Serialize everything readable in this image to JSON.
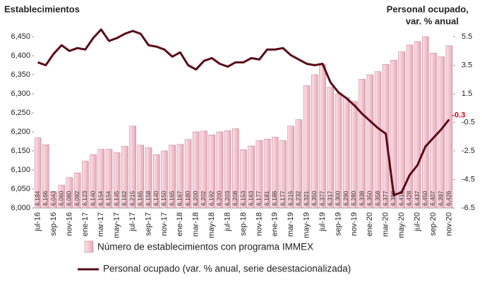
{
  "chart_data": {
    "type": "bar",
    "title": "Establecimientos",
    "y2_title": [
      "Personal ocupado,",
      "var.  % anual"
    ],
    "categories": [
      "jul-16",
      null,
      "sep-16",
      null,
      "nov-16",
      null,
      "ene-17",
      null,
      "mar-17",
      null,
      "may-17",
      null,
      "jul-17",
      null,
      "sep-17",
      null,
      "nov-17",
      null,
      "ene-18",
      null,
      "mar-18",
      null,
      "may-18",
      null,
      "jul-18",
      null,
      "sep-18",
      null,
      "nov-18",
      null,
      "ene-19",
      null,
      "mar-19",
      null,
      "may-19",
      null,
      "jul-19",
      null,
      "sep-19",
      null,
      "nov-19",
      null,
      "ene-20",
      null,
      "mar-20",
      null,
      "may-20",
      null,
      "jul-20",
      null,
      "sep-20",
      null,
      "nov-20"
    ],
    "series": [
      {
        "name": "Número de establecimientos con programa IMMEX",
        "type": "bar",
        "color": "#f3c6d1",
        "edge": "#c08494",
        "values": [
          6184,
          6166,
          6043,
          6060,
          6080,
          6092,
          6123,
          6140,
          6154,
          6154,
          6145,
          6162,
          6215,
          6165,
          6158,
          6140,
          6150,
          6165,
          6167,
          6180,
          6200,
          6202,
          6192,
          6200,
          6203,
          6208,
          6153,
          6163,
          6177,
          6181,
          6186,
          6177,
          6215,
          6232,
          6321,
          6350,
          6377,
          6317,
          6300,
          6290,
          6280,
          6338,
          6350,
          6358,
          6377,
          6388,
          6410,
          6428,
          6437,
          6450,
          6407,
          6397,
          6426
        ],
        "value_labels": [
          "6,184",
          "6,166",
          "6,043",
          "6,060",
          "6,080",
          "6,092",
          "6,123",
          "6,140",
          "6,154",
          "6,154",
          "6,145",
          "6,162",
          "6,215",
          "6,165",
          "6,158",
          "6,140",
          "6,150",
          "6,165",
          "6,167",
          "6,180",
          "6,200",
          "6,202",
          "6,192",
          "6,200",
          "6,203",
          "6,208",
          "6,153",
          "6,163",
          "6,177",
          "6,181",
          "6,186",
          "6,177",
          "6,215",
          "6,232",
          "6,321",
          "6,350",
          "6,377",
          "6,317",
          "6,300",
          "6,290",
          "6,280",
          "6,338",
          "6,350",
          "6,358",
          "6,377",
          "6,388",
          "6,410",
          "6,428",
          "6,437",
          "6,450",
          "6,407",
          "6,397",
          "6,426"
        ]
      },
      {
        "name": "Personal ocupado (var. % anual, serie desestacionalizada)",
        "type": "line",
        "axis": "y2",
        "color": "#5a0a16",
        "values": [
          3.7,
          3.5,
          4.3,
          4.9,
          4.5,
          4.7,
          4.6,
          5.4,
          6.0,
          5.2,
          5.4,
          5.7,
          5.9,
          5.7,
          4.9,
          4.8,
          4.6,
          4.1,
          4.4,
          3.5,
          3.2,
          3.8,
          4.0,
          3.6,
          3.4,
          3.7,
          3.7,
          4.0,
          3.9,
          4.6,
          4.6,
          4.7,
          4.2,
          3.9,
          3.6,
          3.5,
          3.6,
          2.3,
          1.6,
          1.2,
          0.7,
          0.1,
          -0.4,
          -0.9,
          -1.3,
          -5.6,
          -5.4,
          -4.2,
          -3.5,
          -2.2,
          -1.6,
          -1.0,
          -0.3
        ]
      }
    ],
    "annotation": {
      "text": "-0.3",
      "color": "#e0001b"
    },
    "ylim": [
      6000,
      6450
    ],
    "yticks": [
      {
        "value": 6000,
        "label": "6,000"
      },
      {
        "value": 6050,
        "label": "6,050"
      },
      {
        "value": 6100,
        "label": "6,100"
      },
      {
        "value": 6150,
        "label": "6,150"
      },
      {
        "value": 6200,
        "label": "6,200"
      },
      {
        "value": 6250,
        "label": "6,250"
      },
      {
        "value": 6300,
        "label": "6,300"
      },
      {
        "value": 6350,
        "label": "6,350"
      },
      {
        "value": 6400,
        "label": "6,400"
      },
      {
        "value": 6450,
        "label": "6,450"
      }
    ],
    "y2lim": [
      -6.5,
      5.5
    ],
    "y2ticks": [
      -6.5,
      -4.5,
      -2.5,
      -0.5,
      1.5,
      3.5,
      5.5
    ],
    "grid": false
  }
}
